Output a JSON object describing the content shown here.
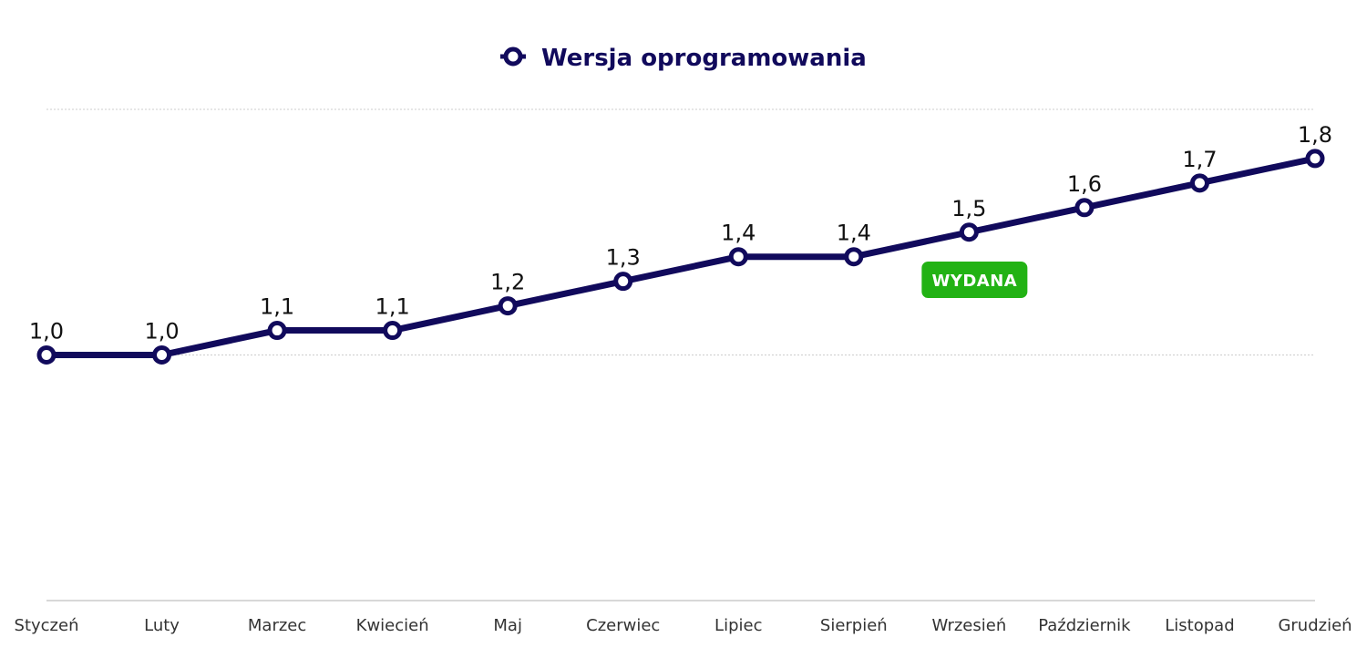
{
  "chart_data": {
    "type": "line",
    "categories": [
      "Styczeń",
      "Luty",
      "Marzec",
      "Kwiecień",
      "Maj",
      "Czerwiec",
      "Lipiec",
      "Sierpień",
      "Wrzesień",
      "Październik",
      "Listopad",
      "Grudzień"
    ],
    "series": [
      {
        "name": "Wersja oprogramowania",
        "values": [
          1.0,
          1.0,
          1.1,
          1.1,
          1.2,
          1.3,
          1.4,
          1.4,
          1.5,
          1.6,
          1.7,
          1.8
        ],
        "data_labels": [
          "1,0",
          "1,0",
          "1,1",
          "1,1",
          "1,2",
          "1,3",
          "1,4",
          "1,4",
          "1,5",
          "1,6",
          "1,7",
          "1,8"
        ]
      }
    ],
    "ylim": [
      0,
      2.0
    ],
    "gridlines": [
      1.0,
      2.0
    ],
    "grid": true,
    "legend_position": "top-center",
    "annotations": [
      {
        "text": "WYDANA",
        "category": "Wrzesień"
      }
    ],
    "colors": {
      "series": "#110a5c",
      "marker_fill": "#ffffff",
      "badge": "#22b214",
      "grid": "#cccccc",
      "axis": "#cccccc"
    }
  }
}
